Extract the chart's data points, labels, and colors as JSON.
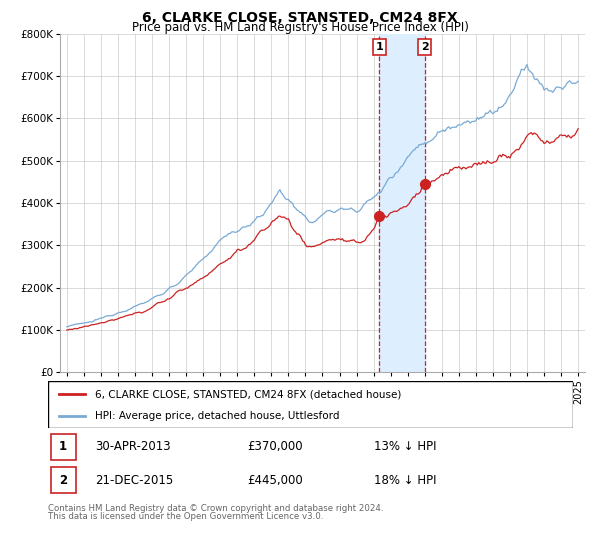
{
  "title": "6, CLARKE CLOSE, STANSTED, CM24 8FX",
  "subtitle": "Price paid vs. HM Land Registry's House Price Index (HPI)",
  "legend_line1": "6, CLARKE CLOSE, STANSTED, CM24 8FX (detached house)",
  "legend_line2": "HPI: Average price, detached house, Uttlesford",
  "footnote1": "Contains HM Land Registry data © Crown copyright and database right 2024.",
  "footnote2": "This data is licensed under the Open Government Licence v3.0.",
  "transaction1_label": "1",
  "transaction1_date": "30-APR-2013",
  "transaction1_price": "£370,000",
  "transaction1_hpi": "13% ↓ HPI",
  "transaction2_label": "2",
  "transaction2_date": "21-DEC-2015",
  "transaction2_price": "£445,000",
  "transaction2_hpi": "18% ↓ HPI",
  "hpi_color": "#7aaad4",
  "price_color": "#cc2222",
  "marker_color": "#cc2222",
  "vline_color": "#cc2222",
  "shade_color": "#ddeeff",
  "ylim_min": 0,
  "ylim_max": 800000,
  "yticks": [
    0,
    100000,
    200000,
    300000,
    400000,
    500000,
    600000,
    700000,
    800000
  ],
  "ytick_labels": [
    "£0",
    "£100K",
    "£200K",
    "£300K",
    "£400K",
    "£500K",
    "£600K",
    "£700K",
    "£800K"
  ],
  "transaction1_year": 2013.33,
  "transaction2_year": 2016.0,
  "transaction1_value": 370000,
  "transaction2_value": 445000,
  "bg_color": "#ffffff",
  "grid_color": "#cccccc"
}
